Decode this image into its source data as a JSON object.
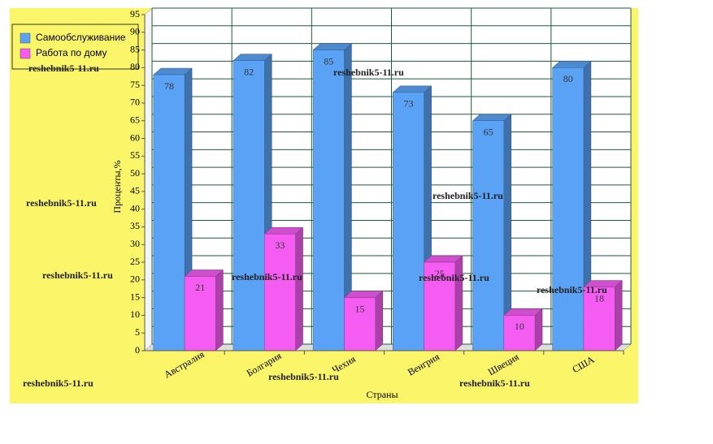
{
  "chart_data": {
    "type": "bar3d",
    "x_label": "Страны",
    "y_label": "Проценты,%",
    "categories": [
      "Австралия",
      "Болгария",
      "Чехия",
      "Венгрия",
      "Швеция",
      "США"
    ],
    "series": [
      {
        "name": "Самообслуживание",
        "color": "#5aa2f5",
        "values": [
          78,
          82,
          85,
          73,
          65,
          80
        ]
      },
      {
        "name": "Работа по дому",
        "color": "#f45cf2",
        "values": [
          21,
          33,
          15,
          25,
          10,
          18
        ]
      }
    ],
    "ylim": [
      0,
      95
    ],
    "yticks": [
      0,
      5,
      10,
      15,
      20,
      25,
      30,
      35,
      40,
      45,
      50,
      55,
      60,
      65,
      70,
      75,
      80,
      85,
      90,
      95
    ],
    "grid": true,
    "legend": "top-left",
    "watermark": "reshebnik5-11.ru"
  }
}
